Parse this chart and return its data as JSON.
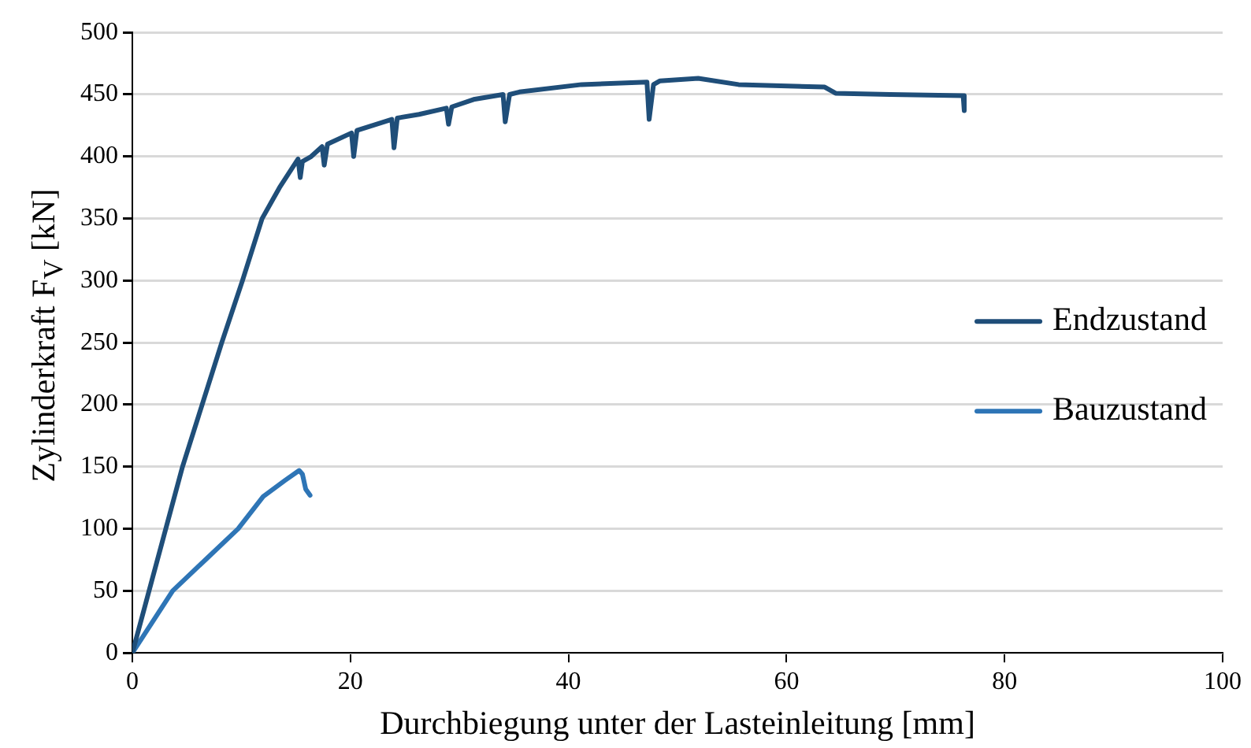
{
  "chart_data": {
    "type": "line",
    "xlabel": "Durchbiegung unter der Lasteinleitung [mm]",
    "ylabel": "Zylinderkraft  F$_{V}$ [kN]",
    "xlim": [
      0,
      100
    ],
    "xticks": [
      0,
      20,
      40,
      60,
      80,
      100
    ],
    "ylim": [
      0,
      500
    ],
    "yticks": [
      0,
      50,
      100,
      150,
      200,
      250,
      300,
      350,
      400,
      450,
      500
    ],
    "grid": "y",
    "legend": "right",
    "marker": "none",
    "line_style": "solid",
    "series": [
      {
        "name": "Endzustand",
        "color": "#1f4e79",
        "x": [
          0,
          4.6,
          8.2,
          10.1,
          11.9,
          13.5,
          15.2,
          15.4,
          15.6,
          16.4,
          17.4,
          17.6,
          17.9,
          20.1,
          20.3,
          20.6,
          23.8,
          24.0,
          24.3,
          26.3,
          28.8,
          29.0,
          29.3,
          31.3,
          34.0,
          34.2,
          34.6,
          35.5,
          41.2,
          47.2,
          47.4,
          47.8,
          48.4,
          51.9,
          55.6,
          63.5,
          64.5,
          69.5,
          76.2,
          76.3
        ],
        "values": [
          0,
          150,
          250,
          300,
          350,
          375,
          398,
          383,
          396,
          400,
          408,
          393,
          410,
          419,
          400,
          421,
          430,
          407,
          431,
          434,
          439,
          426,
          440,
          446,
          450,
          428,
          450,
          452,
          458,
          460,
          430,
          458,
          461,
          463,
          458,
          456,
          451,
          450,
          449,
          437
        ]
      },
      {
        "name": "Bauzustand",
        "color": "#2e75b6",
        "x": [
          0,
          3.7,
          6.7,
          9.7,
          12,
          14,
          15.3,
          15.6,
          15.9,
          16.3
        ],
        "values": [
          0,
          50,
          75,
          100,
          126,
          139,
          147,
          144,
          132,
          127
        ]
      }
    ]
  }
}
